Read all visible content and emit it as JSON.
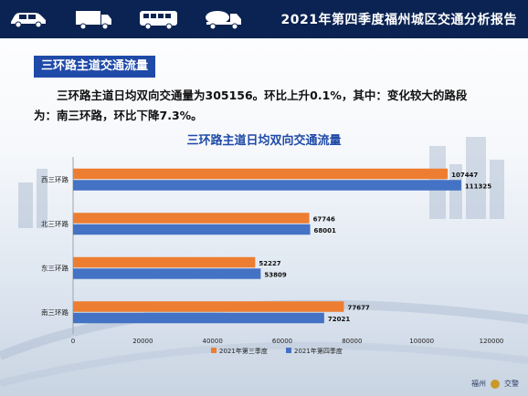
{
  "header": {
    "title": "2021年第四季度福州城区交通分析报告",
    "vehicles": [
      "car-icon",
      "truck-icon",
      "bus-icon",
      "mixer-truck-icon"
    ]
  },
  "section": {
    "tag": "三环路主道交通流量"
  },
  "summary": {
    "line1": "三环路主道日均双向交通量为305156。环比上升0.1%，其中：变化较大的路段",
    "line2": "为：南三环路，环比下降7.3%。"
  },
  "footer": {
    "left": "福州",
    "right": "交警"
  },
  "colors": {
    "q3": "#ed7d31",
    "q4": "#4472c4",
    "header": "#0b2352",
    "tag": "#1f4aa8",
    "title": "#1f4aa8"
  },
  "chart_data": {
    "type": "bar",
    "orientation": "horizontal",
    "title": "三环路主道日均双向交通流量",
    "categories": [
      "西三环路",
      "北三环路",
      "东三环路",
      "南三环路"
    ],
    "series": [
      {
        "name": "2021年第三季度",
        "values": [
          107447,
          67746,
          52227,
          77677
        ]
      },
      {
        "name": "2021年第四季度",
        "values": [
          111325,
          68001,
          53809,
          72021
        ]
      }
    ],
    "xlim": [
      0,
      120000
    ],
    "xticks": [
      "0",
      "20000",
      "40000",
      "60000",
      "80000",
      "100000",
      "120000"
    ],
    "legend": "bottom",
    "grid": false
  }
}
